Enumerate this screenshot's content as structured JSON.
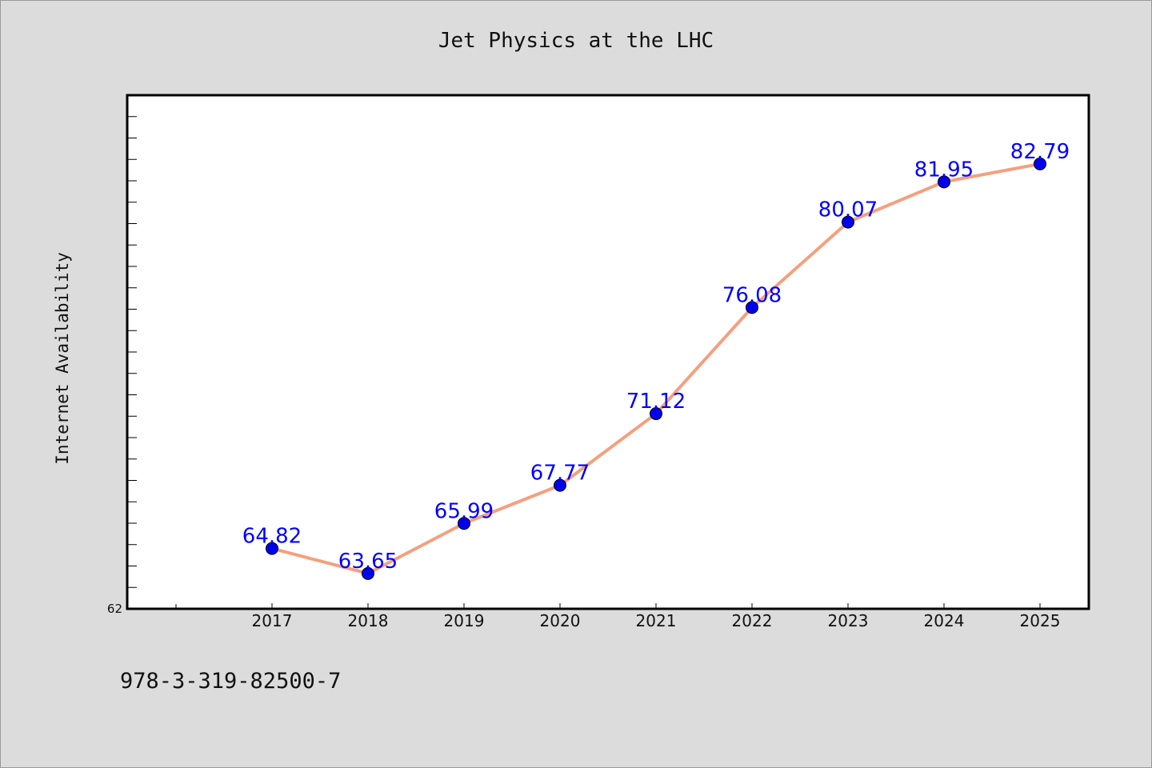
{
  "footer": {
    "code": "978-3-319-82500-7"
  },
  "chart_data": {
    "type": "line",
    "title": "Jet Physics at the LHC",
    "xlabel": "",
    "ylabel": "Internet Availability",
    "categories": [
      "2017",
      "2018",
      "2019",
      "2020",
      "2021",
      "2022",
      "2023",
      "2024",
      "2025"
    ],
    "series": [
      {
        "values": [
          64.82,
          63.65,
          65.99,
          67.77,
          71.12,
          76.08,
          80.07,
          81.95,
          82.79
        ],
        "labels": [
          "64.82",
          "63.65",
          "65.99",
          "67.77",
          "71.12",
          "76.08",
          "80.07",
          "81.95",
          "82.79"
        ]
      }
    ],
    "ylim": [
      62,
      86
    ],
    "ytick_labels": [
      "62"
    ],
    "grid": false,
    "colors": {
      "line": "#f4a07e",
      "marker": "#0000ee",
      "label": "#0000ff",
      "background": "#dcdcdc",
      "plot_bg": "#ffffff"
    }
  }
}
